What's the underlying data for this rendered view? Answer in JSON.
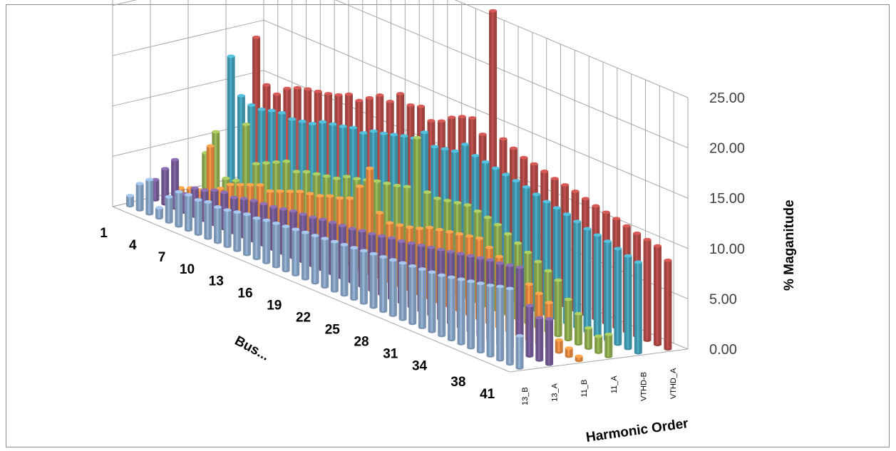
{
  "chart_data": {
    "type": "bar",
    "subtype": "3d-column",
    "title": "",
    "xlabel": "Bus...",
    "ylabel": "% Maganitude",
    "zlabel": "Harmonic Order",
    "ylim": [
      0,
      25
    ],
    "y_ticks": [
      "0.00",
      "5.00",
      "10.00",
      "15.00",
      "20.00",
      "25.00"
    ],
    "grid": true,
    "x_tick_labels": [
      "1",
      "4",
      "7",
      "10",
      "13",
      "16",
      "19",
      "22",
      "25",
      "28",
      "31",
      "34",
      "38",
      "41"
    ],
    "depth_tick_labels": [
      "13_B",
      "13_A",
      "11_B",
      "11_A",
      "VTHD-B",
      "VTHD_A"
    ],
    "buses": [
      1,
      2,
      3,
      4,
      5,
      6,
      7,
      8,
      9,
      10,
      11,
      12,
      13,
      14,
      15,
      16,
      17,
      18,
      19,
      20,
      21,
      22,
      23,
      24,
      25,
      26,
      27,
      28,
      29,
      30,
      31,
      32,
      33,
      34,
      35,
      36,
      37,
      38,
      39,
      40,
      41
    ],
    "series": [
      {
        "name": "13_B",
        "color": "#95b3d7",
        "values": [
          1.0,
          2.6,
          3.4,
          1.0,
          2.5,
          3.4,
          3.5,
          3.4,
          3.6,
          3.5,
          3.6,
          3.8,
          4.0,
          4.0,
          4.2,
          4.3,
          4.4,
          4.5,
          4.6,
          4.7,
          4.8,
          4.9,
          5.0,
          5.1,
          5.2,
          5.3,
          5.4,
          5.5,
          5.6,
          5.7,
          5.8,
          5.9,
          6.0,
          6.2,
          6.4,
          6.6,
          6.8,
          7.0,
          7.3,
          7.5,
          3.2
        ]
      },
      {
        "name": "13_A",
        "color": "#8064a2",
        "values": [
          2.0,
          3.5,
          4.8,
          1.8,
          2.8,
          3.0,
          3.4,
          3.6,
          3.5,
          3.8,
          4.0,
          4.1,
          4.2,
          4.4,
          4.6,
          4.7,
          4.8,
          5.0,
          5.1,
          5.2,
          5.3,
          5.5,
          5.6,
          5.8,
          6.0,
          6.1,
          6.3,
          6.5,
          6.7,
          6.9,
          7.1,
          7.3,
          7.5,
          7.7,
          7.9,
          8.0,
          8.2,
          8.4,
          5.0,
          4.2,
          4.5
        ]
      },
      {
        "name": "11_B",
        "color": "#f79646",
        "values": [
          0.6,
          1.0,
          1.2,
          6.0,
          2.2,
          3.0,
          3.4,
          3.8,
          4.2,
          4.0,
          4.4,
          4.8,
          5.2,
          5.4,
          5.6,
          6.0,
          6.2,
          6.6,
          8.2,
          10.4,
          6.4,
          5.8,
          6.0,
          6.2,
          6.5,
          7.0,
          7.2,
          7.4,
          7.6,
          7.8,
          8.0,
          7.5,
          7.0,
          6.5,
          6.0,
          5.5,
          5.0,
          4.5,
          1.2,
          0.8,
          0.4
        ]
      },
      {
        "name": "11_A",
        "color": "#9bbb59",
        "values": [
          3.5,
          6.0,
          1.8,
          2.0,
          8.0,
          4.5,
          5.0,
          5.5,
          6.0,
          5.4,
          5.8,
          6.0,
          6.2,
          6.4,
          7.0,
          7.2,
          7.5,
          7.8,
          8.0,
          8.2,
          8.5,
          13.8,
          8.8,
          8.6,
          8.8,
          9.0,
          9.2,
          9.0,
          8.8,
          8.5,
          8.0,
          7.5,
          7.0,
          6.5,
          6.0,
          5.5,
          4.0,
          3.0,
          2.0,
          1.6,
          2.2
        ]
      },
      {
        "name": "VTHD-B",
        "color": "#4bacc6",
        "values": [
          12.5,
          9.0,
          8.5,
          8.5,
          8.8,
          9.0,
          8.8,
          9.0,
          9.2,
          9.8,
          10.0,
          10.2,
          10.5,
          10.4,
          11.0,
          11.2,
          11.5,
          11.8,
          12.0,
          13.0,
          12.0,
          12.2,
          12.4,
          13.5,
          12.8,
          12.6,
          12.4,
          12.2,
          12.0,
          11.8,
          11.5,
          11.2,
          11.0,
          10.8,
          10.5,
          10.2,
          10.0,
          9.8,
          9.5,
          9.2,
          9.0
        ]
      },
      {
        "name": "VTHD_A",
        "color": "#c0504d",
        "values": [
          13.8,
          9.5,
          9.0,
          10.0,
          10.5,
          10.8,
          11.0,
          11.2,
          11.5,
          12.0,
          11.8,
          12.5,
          13.2,
          13.0,
          14.2,
          13.5,
          13.8,
          12.8,
          13.2,
          14.0,
          14.5,
          14.8,
          13.6,
          26.3,
          14.0,
          13.5,
          13.0,
          12.8,
          12.5,
          12.2,
          12.0,
          11.8,
          11.5,
          11.2,
          11.0,
          10.8,
          10.5,
          10.2,
          10.0,
          9.8,
          8.8
        ]
      }
    ]
  }
}
